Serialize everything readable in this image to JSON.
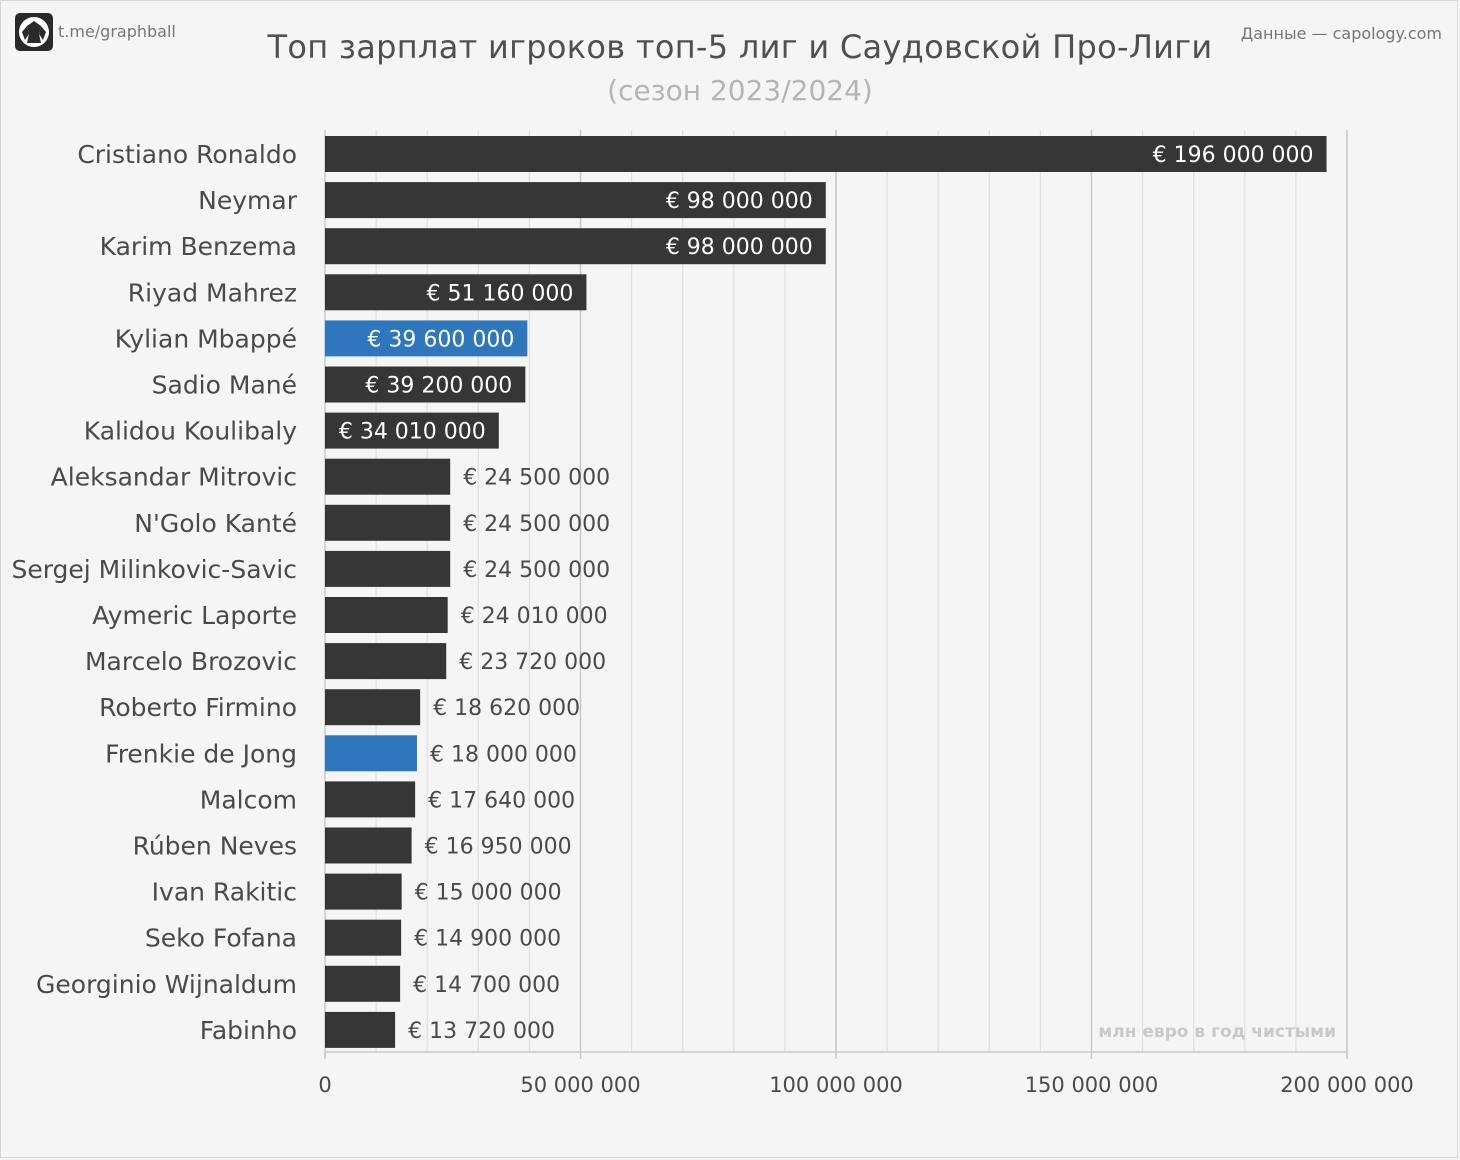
{
  "header": {
    "handle": "t.me/graphball",
    "credit": "Данные — capology.com",
    "title": "Топ зарплат игроков топ-5 лиг и Саудовской Про-Лиги",
    "subtitle": "(сезон 2023/2024)"
  },
  "unit_note": "млн евро в год чистыми",
  "colors": {
    "bar": "#363636",
    "highlight": "#2f77bd",
    "grid": "#d2d2d2",
    "axis": "#c9c9c9",
    "inside_label": "#ffffff",
    "outside_label": "#4a4a4a"
  },
  "chart_data": {
    "type": "bar",
    "orientation": "horizontal",
    "title": "Топ зарплат игроков топ-5 лиг и Саудовской Про-Лиги",
    "subtitle": "(сезон 2023/2024)",
    "xlim": [
      0,
      200000000
    ],
    "x_ticks": [
      0,
      50000000,
      100000000,
      150000000,
      200000000
    ],
    "x_tick_labels": [
      "0",
      "50 000 000",
      "100 000 000",
      "150 000 000",
      "200 000 000"
    ],
    "grid": true,
    "categories": [
      "Cristiano Ronaldo",
      "Neymar",
      "Karim Benzema",
      "Riyad Mahrez",
      "Kylian Mbappé",
      "Sadio Mané",
      "Kalidou Koulibaly",
      "Aleksandar Mitrovic",
      "N'Golo Kanté",
      "Sergej Milinkovic-Savic",
      "Aymeric Laporte",
      "Marcelo Brozovic",
      "Roberto Firmino",
      "Frenkie de Jong",
      "Malcom",
      "Rúben Neves",
      "Ivan Rakitic",
      "Seko Fofana",
      "Georginio Wijnaldum",
      "Fabinho"
    ],
    "values": [
      196000000,
      98000000,
      98000000,
      51160000,
      39600000,
      39200000,
      34010000,
      24500000,
      24500000,
      24500000,
      24010000,
      23720000,
      18620000,
      18000000,
      17640000,
      16950000,
      15000000,
      14900000,
      14700000,
      13720000
    ],
    "value_labels": [
      "€ 196 000 000",
      "€ 98 000 000",
      "€ 98 000 000",
      "€ 51 160 000",
      "€ 39 600 000",
      "€ 39 200 000",
      "€ 34 010 000",
      "€ 24 500 000",
      "€ 24 500 000",
      "€ 24 500 000",
      "€ 24 010 000",
      "€ 23 720 000",
      "€ 18 620 000",
      "€ 18 000 000",
      "€ 17 640 000",
      "€ 16 950 000",
      "€ 15 000 000",
      "€ 14 900 000",
      "€ 14 700 000",
      "€ 13 720 000"
    ],
    "highlighted": [
      "Kylian Mbappé",
      "Frenkie de Jong"
    ]
  }
}
